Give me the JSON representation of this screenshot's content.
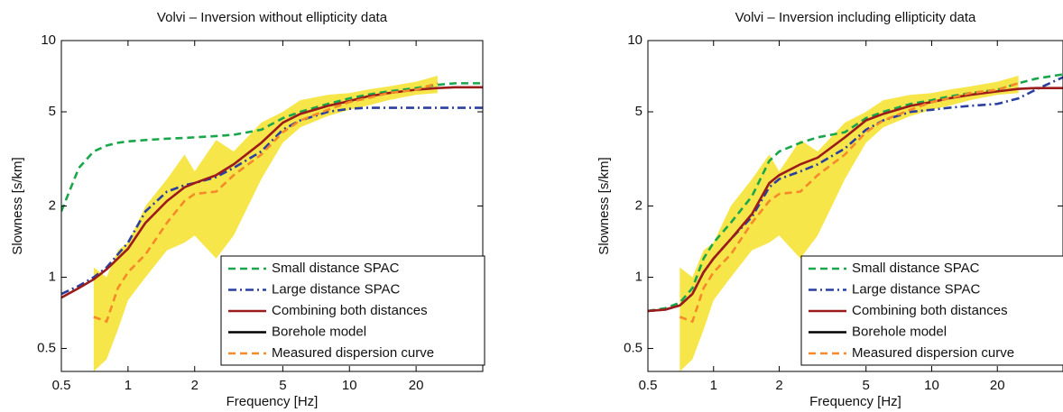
{
  "chart_data": [
    {
      "type": "line",
      "title": "Volvi – Inversion without ellipticity data",
      "xlabel": "Frequency [Hz]",
      "ylabel": "Slowness [s/km]",
      "xscale": "log",
      "yscale": "log",
      "xlim": [
        0.5,
        40
      ],
      "ylim": [
        0.4,
        10
      ],
      "xticks": [
        0.5,
        1,
        2,
        5,
        10,
        20
      ],
      "yticks": [
        0.5,
        1,
        2,
        5,
        10
      ],
      "legend": "lower right",
      "x": [
        0.5,
        0.6,
        0.7,
        0.8,
        0.9,
        1,
        1.2,
        1.5,
        1.8,
        2,
        2.5,
        3,
        4,
        5,
        6,
        8,
        10,
        12,
        15,
        20,
        25,
        30,
        40
      ],
      "band": {
        "color": "#f7e64a",
        "lower": [
          null,
          null,
          0.4,
          0.45,
          0.6,
          0.8,
          1.0,
          1.3,
          1.4,
          1.5,
          1.2,
          1.5,
          2.6,
          3.7,
          4.3,
          4.8,
          5.1,
          5.3,
          5.6,
          5.9,
          6.0,
          null,
          null
        ],
        "upper": [
          null,
          null,
          1.1,
          1.0,
          1.3,
          1.4,
          2.0,
          2.6,
          3.3,
          2.8,
          3.8,
          3.4,
          4.5,
          5.0,
          5.6,
          5.9,
          6.0,
          6.2,
          6.4,
          6.7,
          7.1,
          null,
          null
        ]
      },
      "series": [
        {
          "name": "Small distance SPAC",
          "color": "#1aa64a",
          "dash": "dashed",
          "values": [
            1.9,
            2.9,
            3.4,
            3.6,
            3.7,
            3.75,
            3.8,
            3.85,
            3.88,
            3.9,
            3.95,
            4.0,
            4.2,
            4.7,
            5.0,
            5.4,
            5.7,
            5.9,
            6.1,
            6.3,
            6.5,
            6.6,
            6.6
          ]
        },
        {
          "name": "Large distance SPAC",
          "color": "#2a3fa0",
          "dash": "dashdot",
          "values": [
            0.85,
            0.92,
            1.0,
            1.1,
            1.25,
            1.4,
            1.9,
            2.3,
            2.45,
            2.5,
            2.65,
            2.9,
            3.4,
            4.2,
            4.6,
            5.0,
            5.15,
            5.2,
            5.2,
            5.2,
            5.2,
            5.2,
            5.2
          ]
        },
        {
          "name": "Borehole model",
          "color": "#000000",
          "dash": "solid",
          "legend_order": 4,
          "values": [
            0.82,
            0.9,
            0.98,
            1.08,
            1.2,
            1.32,
            1.7,
            2.1,
            2.4,
            2.5,
            2.7,
            3.0,
            3.7,
            4.5,
            4.9,
            5.3,
            5.55,
            5.8,
            6.0,
            6.2,
            6.3,
            6.35,
            6.35
          ]
        },
        {
          "name": "Combining both distances",
          "color": "#9c1b1b",
          "dash": "solid",
          "values": [
            0.82,
            0.9,
            0.98,
            1.08,
            1.2,
            1.32,
            1.7,
            2.1,
            2.4,
            2.5,
            2.7,
            3.0,
            3.7,
            4.5,
            4.9,
            5.3,
            5.55,
            5.8,
            6.0,
            6.2,
            6.3,
            6.35,
            6.35
          ]
        },
        {
          "name": "Measured dispersion curve",
          "color": "#f58a2a",
          "dash": "dashed",
          "values": [
            null,
            null,
            0.68,
            0.65,
            0.9,
            1.05,
            1.25,
            1.7,
            2.1,
            2.25,
            2.3,
            2.7,
            3.3,
            4.1,
            4.6,
            5.1,
            5.5,
            5.7,
            6.0,
            6.2,
            6.6,
            null,
            null
          ]
        }
      ]
    },
    {
      "type": "line",
      "title": "Volvi – Inversion including ellipticity data",
      "xlabel": "Frequency [Hz]",
      "ylabel": "Slowness [s/km]",
      "xscale": "log",
      "yscale": "log",
      "xlim": [
        0.5,
        40
      ],
      "ylim": [
        0.4,
        10
      ],
      "xticks": [
        0.5,
        1,
        2,
        5,
        10,
        20
      ],
      "yticks": [
        0.5,
        1,
        2,
        5,
        10
      ],
      "legend": "lower right",
      "x": [
        0.5,
        0.6,
        0.7,
        0.8,
        0.9,
        1,
        1.2,
        1.5,
        1.8,
        2,
        2.5,
        3,
        4,
        5,
        6,
        8,
        10,
        12,
        15,
        20,
        25,
        30,
        40
      ],
      "band": {
        "color": "#f7e64a",
        "lower": [
          null,
          null,
          0.4,
          0.45,
          0.6,
          0.8,
          1.0,
          1.3,
          1.4,
          1.5,
          1.2,
          1.5,
          2.6,
          3.7,
          4.3,
          4.8,
          5.1,
          5.3,
          5.6,
          5.9,
          6.0,
          null,
          null
        ],
        "upper": [
          null,
          null,
          1.1,
          1.0,
          1.3,
          1.4,
          2.0,
          2.6,
          3.3,
          2.8,
          3.8,
          3.4,
          4.5,
          5.0,
          5.6,
          5.9,
          6.0,
          6.2,
          6.4,
          6.7,
          7.1,
          null,
          null
        ]
      },
      "series": [
        {
          "name": "Small distance SPAC",
          "color": "#1aa64a",
          "dash": "dashed",
          "values": [
            0.72,
            0.74,
            0.78,
            0.9,
            1.2,
            1.4,
            1.7,
            2.2,
            3.1,
            3.4,
            3.7,
            3.9,
            4.1,
            4.7,
            5.0,
            5.4,
            5.6,
            5.8,
            6.0,
            6.2,
            6.6,
            6.9,
            7.2
          ]
        },
        {
          "name": "Large distance SPAC",
          "color": "#2a3fa0",
          "dash": "dashdot",
          "values": [
            0.72,
            0.73,
            0.76,
            0.85,
            1.05,
            1.2,
            1.45,
            1.8,
            2.4,
            2.6,
            2.8,
            3.0,
            3.5,
            4.2,
            4.6,
            5.0,
            5.1,
            5.2,
            5.3,
            5.4,
            5.7,
            6.2,
            7.0
          ]
        },
        {
          "name": "Borehole model",
          "color": "#000000",
          "dash": "solid",
          "legend_order": 4,
          "values": [
            0.72,
            0.73,
            0.76,
            0.85,
            1.05,
            1.2,
            1.45,
            1.85,
            2.5,
            2.7,
            3.0,
            3.2,
            3.9,
            4.6,
            4.9,
            5.3,
            5.5,
            5.7,
            5.9,
            6.1,
            6.25,
            6.3,
            6.3
          ]
        },
        {
          "name": "Combining both distances",
          "color": "#9c1b1b",
          "dash": "solid",
          "values": [
            0.72,
            0.73,
            0.76,
            0.85,
            1.05,
            1.2,
            1.45,
            1.85,
            2.5,
            2.7,
            3.0,
            3.2,
            3.9,
            4.6,
            4.9,
            5.3,
            5.5,
            5.7,
            5.9,
            6.1,
            6.25,
            6.3,
            6.3
          ]
        },
        {
          "name": "Measured dispersion curve",
          "color": "#f58a2a",
          "dash": "dashed",
          "values": [
            null,
            null,
            0.68,
            0.65,
            0.9,
            1.05,
            1.25,
            1.7,
            2.1,
            2.25,
            2.3,
            2.7,
            3.3,
            4.1,
            4.6,
            5.1,
            5.5,
            5.7,
            6.0,
            6.2,
            6.6,
            null,
            null
          ]
        }
      ]
    }
  ]
}
